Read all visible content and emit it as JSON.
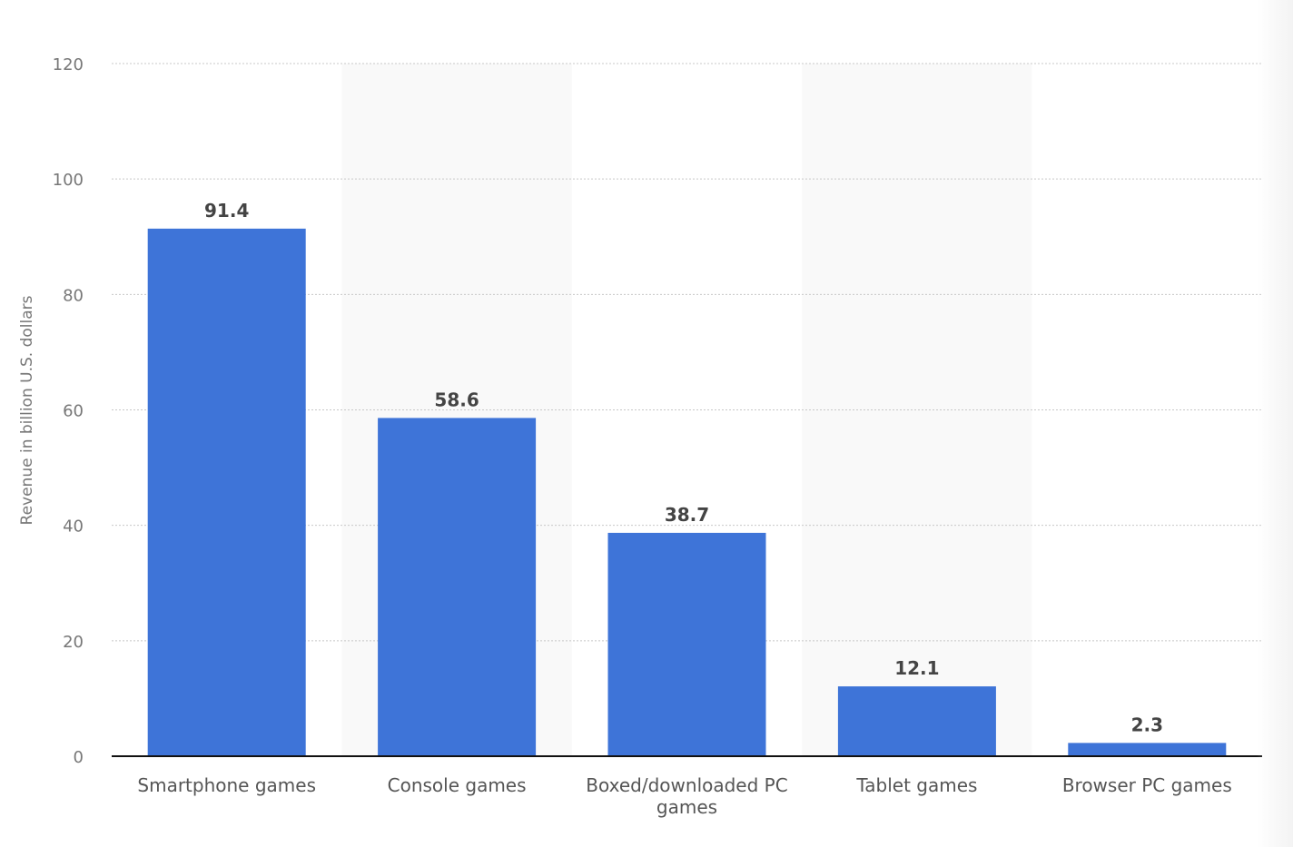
{
  "chart_data": {
    "type": "bar",
    "categories": [
      "Smartphone games",
      "Console games",
      "Boxed/downloaded PC games",
      "Tablet games",
      "Browser PC games"
    ],
    "category_lines": [
      [
        "Smartphone games"
      ],
      [
        "Console games"
      ],
      [
        "Boxed/downloaded PC",
        "games"
      ],
      [
        "Tablet games"
      ],
      [
        "Browser PC games"
      ]
    ],
    "values": [
      91.4,
      58.6,
      38.7,
      12.1,
      2.3
    ],
    "data_labels": [
      "91.4",
      "58.6",
      "38.7",
      "12.1",
      "2.3"
    ],
    "title": "",
    "xlabel": "",
    "ylabel": "Revenue in billion U.S. dollars",
    "ylim": [
      0,
      120
    ],
    "yticks": [
      0,
      20,
      40,
      60,
      80,
      100,
      120
    ],
    "grid": true,
    "alternating_band_shading": true,
    "colors": {
      "bar": "#3e74d8",
      "band": "#f9f9f9",
      "grid": "#c8c8c8",
      "axis": "#111111"
    }
  }
}
